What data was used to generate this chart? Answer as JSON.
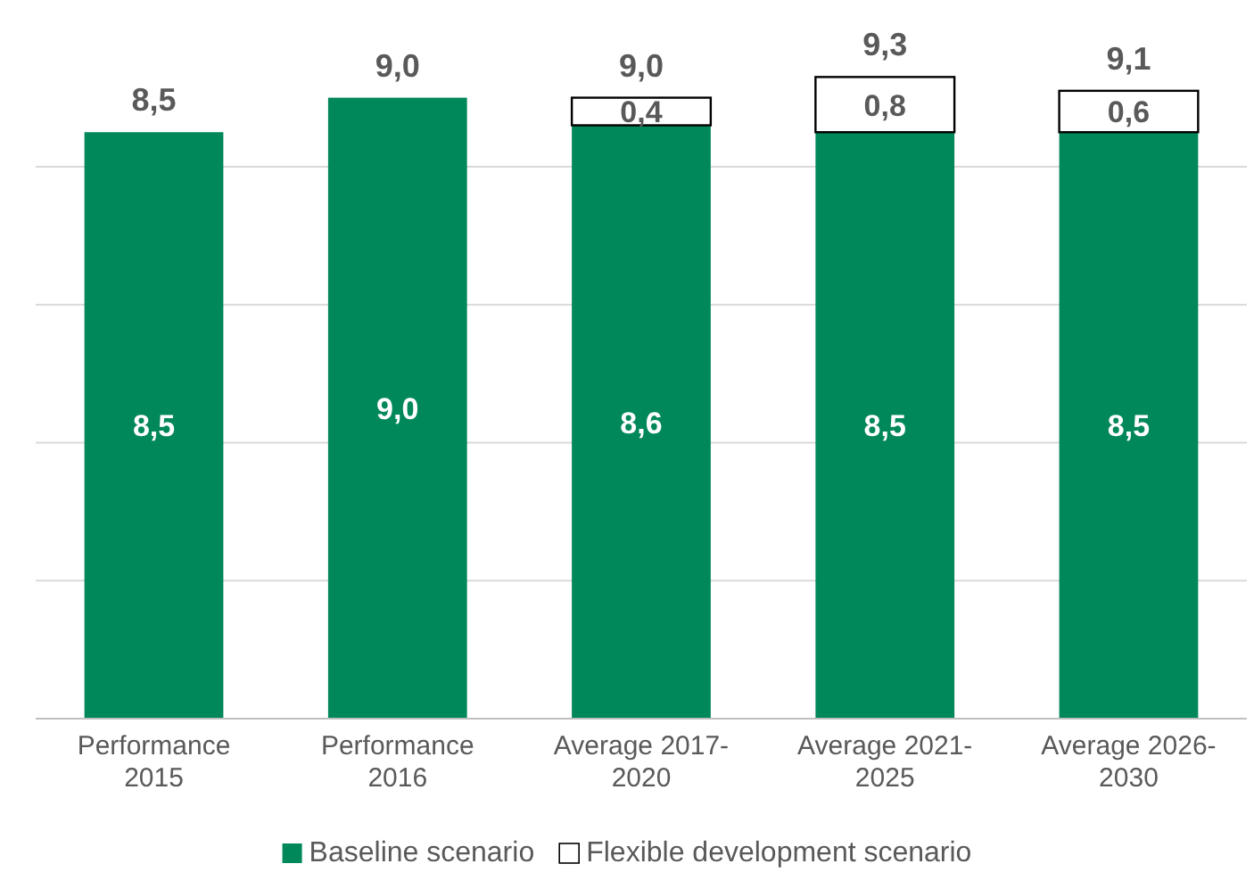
{
  "chart_data": {
    "type": "bar",
    "stacked": true,
    "categories": [
      "Performance 2015",
      "Performance 2016",
      "Average 2017-2020",
      "Average 2021-2025",
      "Average 2026-2030"
    ],
    "series": [
      {
        "name": "Baseline scenario",
        "color": "#00875a",
        "values": [
          8.5,
          9.0,
          8.6,
          8.5,
          8.5
        ],
        "value_labels": [
          "8,5",
          "9,0",
          "8,6",
          "8,5",
          "8,5"
        ]
      },
      {
        "name": "Flexible development scenario",
        "color": "#ffffff",
        "values": [
          null,
          null,
          0.4,
          0.8,
          0.6
        ],
        "value_labels": [
          null,
          null,
          "0,4",
          "0,8",
          "0,6"
        ]
      }
    ],
    "totals": [
      "8,5",
      "9,0",
      "9,0",
      "9,3",
      "9,1"
    ],
    "yticks": [
      {
        "value": 0,
        "label": null
      },
      {
        "value": 2,
        "label": null
      },
      {
        "value": 4,
        "label": null
      },
      {
        "value": 6,
        "label": null
      },
      {
        "value": 8,
        "label": null
      }
    ],
    "tick_labels": "x",
    "grid": "y",
    "legend": "bottom"
  }
}
